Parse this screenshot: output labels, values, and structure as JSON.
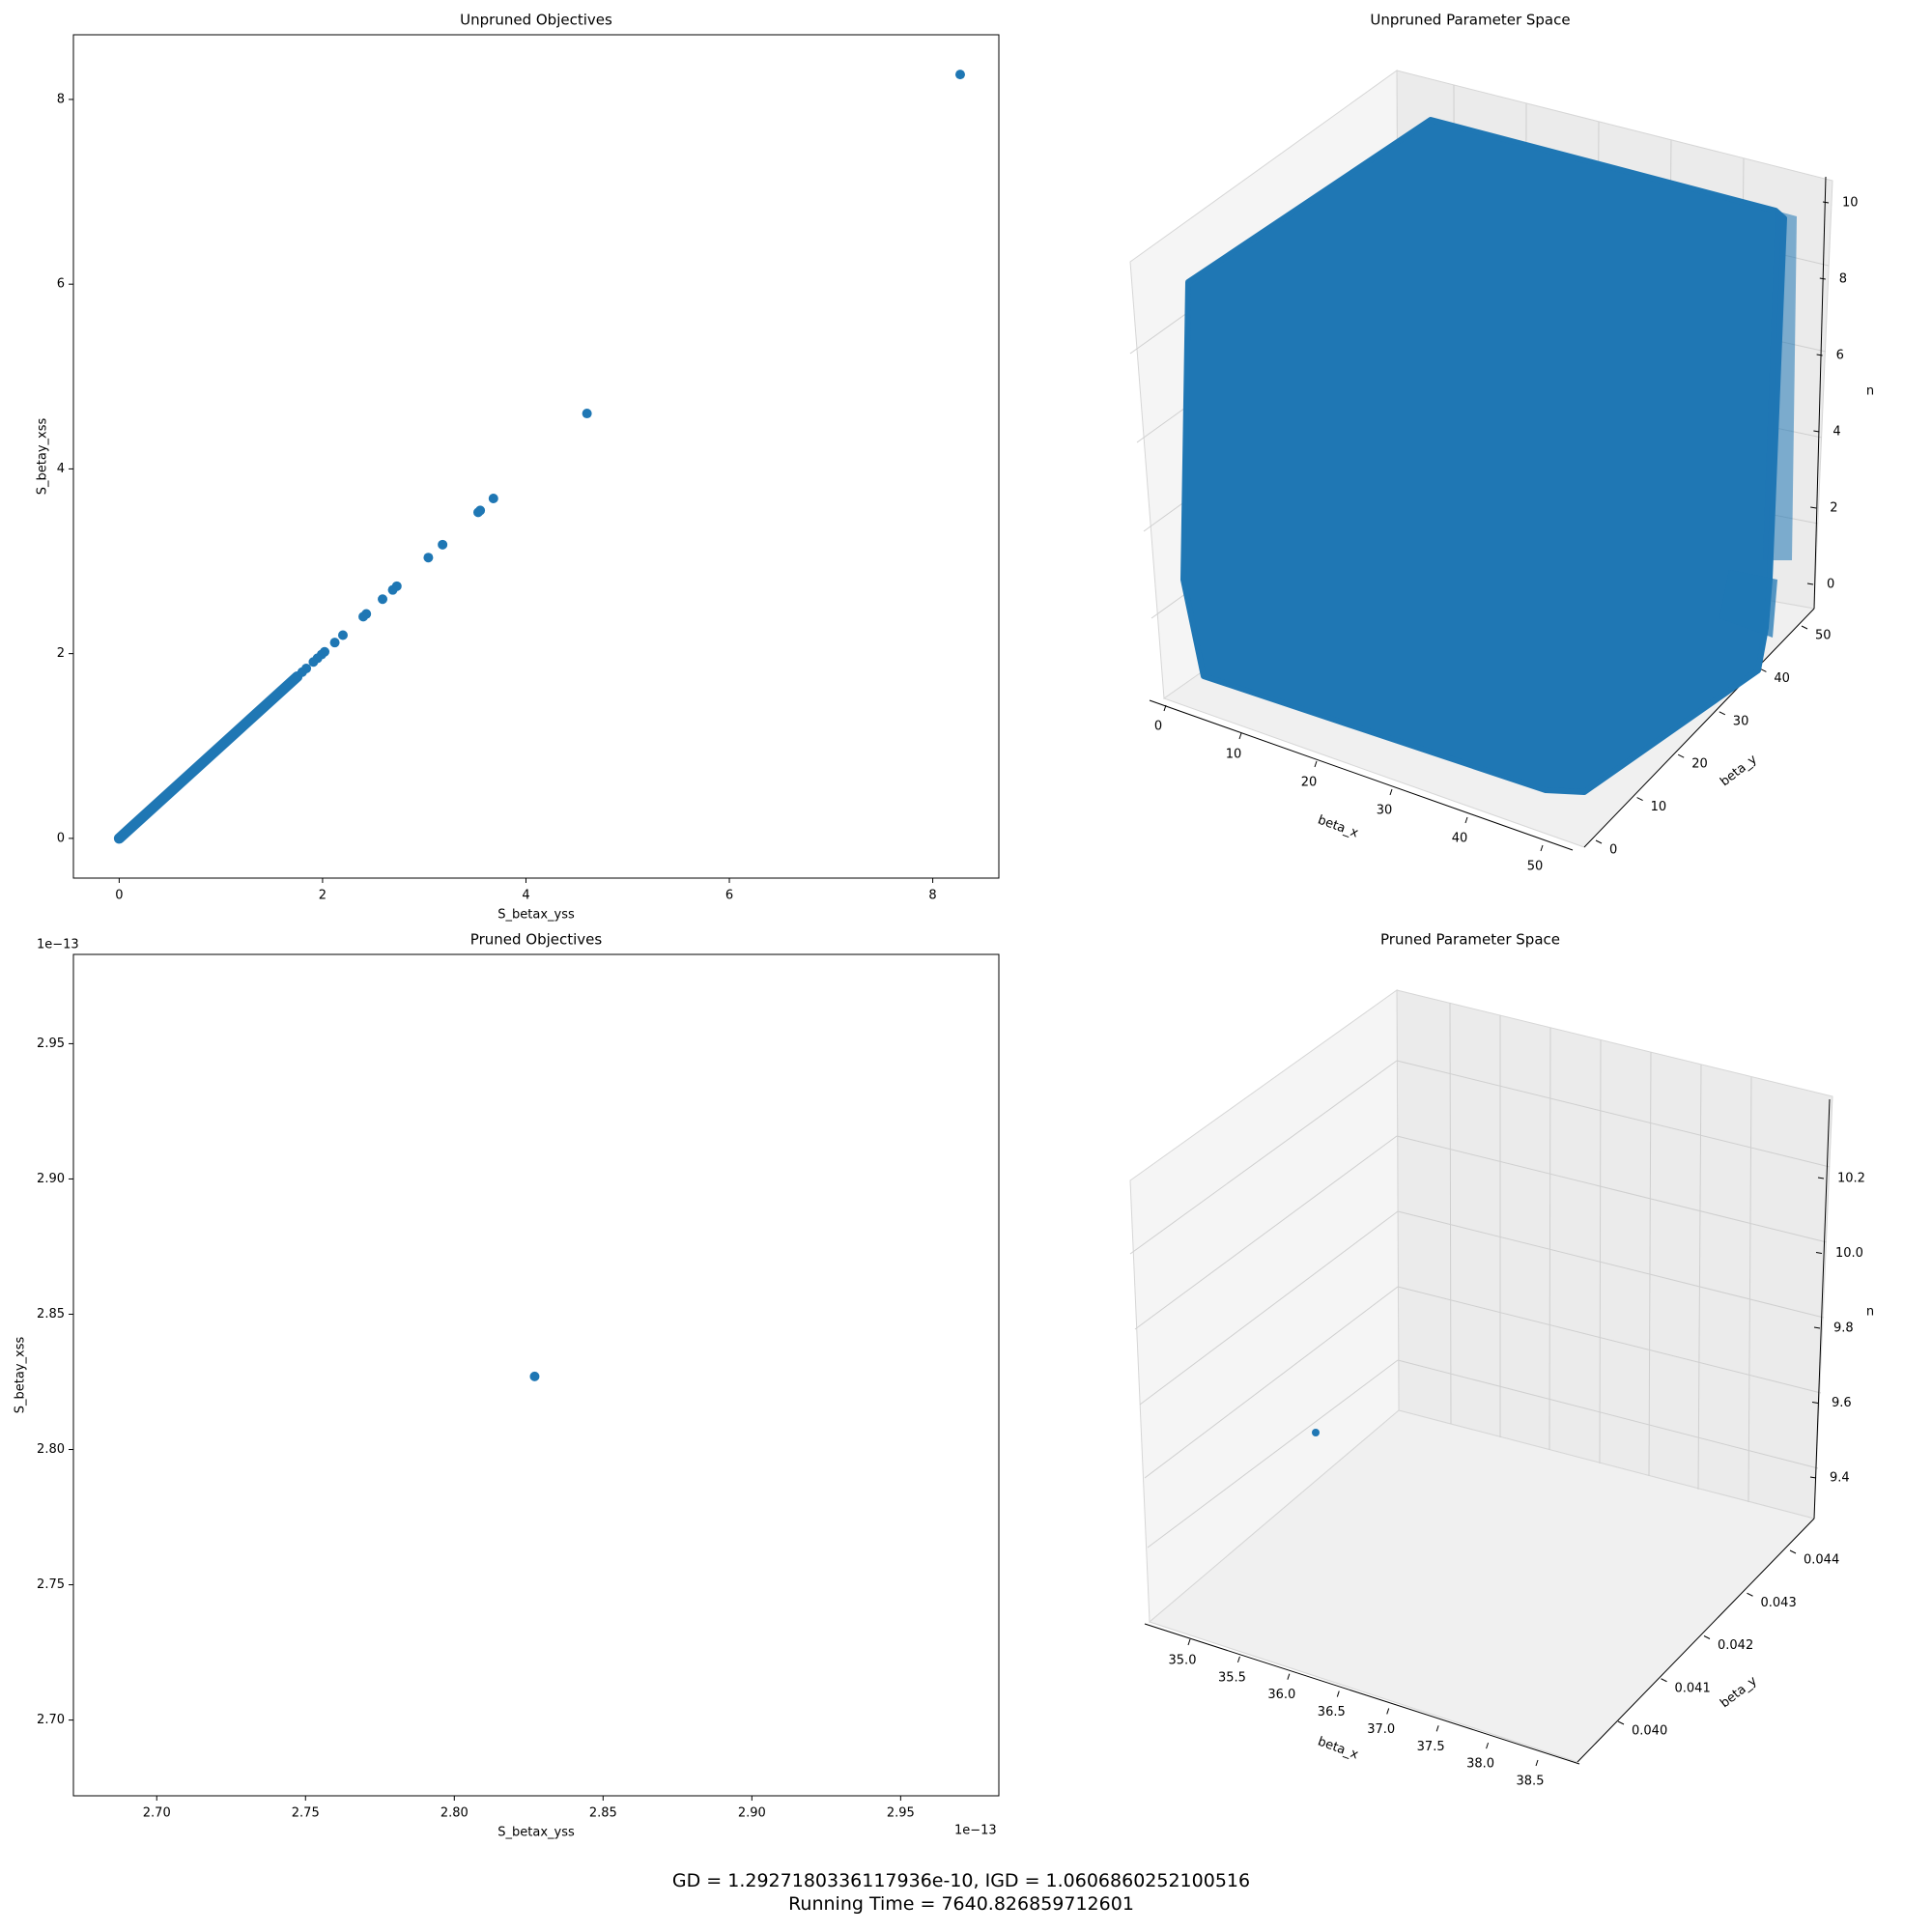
{
  "chart_data": [
    {
      "id": "unpruned-objectives",
      "type": "scatter",
      "title": "Unpruned Objectives",
      "xlabel": "S_betax_yss",
      "ylabel": "S_betay_xss",
      "xlim": [
        -0.45,
        8.65
      ],
      "ylim": [
        -0.43,
        8.7
      ],
      "xticks": [
        0,
        2,
        4,
        6,
        8
      ],
      "yticks": [
        0,
        2,
        4,
        6,
        8
      ],
      "color": "#1f77b4",
      "diagonal_cluster": [
        0,
        1.75
      ],
      "points": [
        [
          8.27,
          8.27
        ],
        [
          4.6,
          4.6
        ],
        [
          3.68,
          3.68
        ],
        [
          3.55,
          3.55
        ],
        [
          3.53,
          3.53
        ],
        [
          3.18,
          3.18
        ],
        [
          3.04,
          3.04
        ],
        [
          2.73,
          2.73
        ],
        [
          2.69,
          2.69
        ],
        [
          2.59,
          2.59
        ],
        [
          2.43,
          2.43
        ],
        [
          2.4,
          2.4
        ],
        [
          2.2,
          2.2
        ],
        [
          2.12,
          2.12
        ],
        [
          2.02,
          2.02
        ],
        [
          1.99,
          1.99
        ],
        [
          1.95,
          1.95
        ],
        [
          1.91,
          1.91
        ],
        [
          1.84,
          1.84
        ],
        [
          1.8,
          1.8
        ]
      ]
    },
    {
      "id": "unpruned-parameter-space",
      "type": "scatter3d",
      "title": "Unpruned Parameter Space",
      "xlabel": "beta_x",
      "ylabel": "beta_y",
      "zlabel": "n",
      "xticks": [
        "0",
        "10",
        "20",
        "30",
        "40",
        "50"
      ],
      "yticks": [
        "0",
        "10",
        "20",
        "30",
        "40",
        "50"
      ],
      "zticks": [
        "0",
        "2",
        "4",
        "6",
        "8",
        "10"
      ],
      "xrange": [
        0,
        50
      ],
      "yrange": [
        0,
        50
      ],
      "zrange": [
        0,
        10
      ],
      "color": "#1f77b4"
    },
    {
      "id": "pruned-objectives",
      "type": "scatter",
      "title": "Pruned Objectives",
      "xlabel": "S_betax_yss",
      "ylabel": "S_betay_xss",
      "x_offset_text": "1e−13",
      "y_offset_text": "1e−13",
      "xlim": [
        2.672,
        2.983
      ],
      "ylim": [
        2.672,
        2.983
      ],
      "xticks": [
        "2.70",
        "2.75",
        "2.80",
        "2.85",
        "2.90",
        "2.95"
      ],
      "yticks": [
        "2.70",
        "2.75",
        "2.80",
        "2.85",
        "2.90",
        "2.95"
      ],
      "color": "#1f77b4",
      "points": [
        [
          2.827,
          2.827
        ]
      ]
    },
    {
      "id": "pruned-parameter-space",
      "type": "scatter3d",
      "title": "Pruned Parameter Space",
      "xlabel": "beta_x",
      "ylabel": "beta_y",
      "zlabel": "n",
      "xticks": [
        "35.0",
        "35.5",
        "36.0",
        "36.5",
        "37.0",
        "37.5",
        "38.0",
        "38.5"
      ],
      "yticks": [
        "0.040",
        "0.041",
        "0.042",
        "0.043",
        "0.044"
      ],
      "zticks": [
        "9.4",
        "9.6",
        "9.8",
        "10.0",
        "10.2"
      ],
      "color": "#1f77b4",
      "points": [
        [
          36.7,
          0.0422,
          9.8
        ]
      ]
    }
  ],
  "footer": {
    "metrics": "GD = 1.2927180336117936e-10, IGD = 1.0606860252100516",
    "running_time": "Running Time = 7640.826859712601"
  }
}
